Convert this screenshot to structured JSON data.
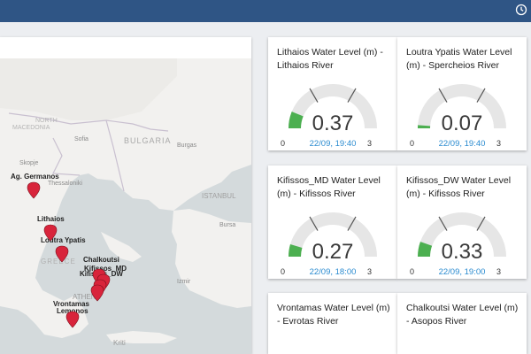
{
  "colors": {
    "topbar": "#2f5585",
    "gauge_fill": "#4caf50",
    "gauge_track": "#e6e6e6",
    "timestamp": "#2a8bd0",
    "marker": "#d8243b"
  },
  "map": {
    "countries": [
      "BULGARIA",
      "NORTH",
      "MACEDONIA",
      "GREECE"
    ],
    "cities": [
      "Sofia",
      "Skopje",
      "Burgas",
      "Thessaloniki",
      "ISTANBUL",
      "Bursa",
      "Izmir",
      "ATHENS",
      "Kriti"
    ],
    "stations": [
      "Ag. Germanos",
      "Lithaios",
      "Loutra Ypatis",
      "Chalkoutsi",
      "Kifissos_MD",
      "Kifissos_DW",
      "Vrontamas",
      "Lemonos"
    ]
  },
  "gauges": [
    {
      "title": "Lithaios Water Level (m) - Lithaios River",
      "value": "0.37",
      "fraction": 0.123,
      "min": "0",
      "max": "3",
      "timestamp": "22/09, 19:40"
    },
    {
      "title": "Loutra Ypatis Water Level (m) - Spercheios River",
      "value": "0.07",
      "fraction": 0.023,
      "min": "0",
      "max": "3",
      "timestamp": "22/09, 19:40"
    },
    {
      "title": "Kifissos_MD Water Level (m) - Kifissos River",
      "value": "0.27",
      "fraction": 0.09,
      "min": "0",
      "max": "3",
      "timestamp": "22/09, 18:00"
    },
    {
      "title": "Kifissos_DW Water Level (m) - Kifissos River",
      "value": "0.33",
      "fraction": 0.11,
      "min": "0",
      "max": "3",
      "timestamp": "22/09, 19:00"
    },
    {
      "title": "Vrontamas Water Level (m) - Evrotas River"
    },
    {
      "title": "Chalkoutsi Water Level (m) - Asopos River"
    }
  ]
}
